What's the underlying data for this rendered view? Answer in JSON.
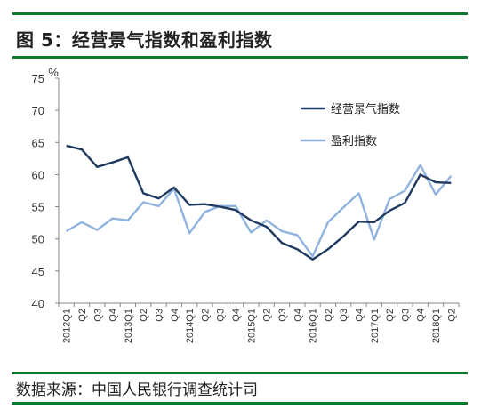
{
  "header": {
    "title": "图 5：经营景气指数和盈利指数"
  },
  "footer": {
    "source": "数据来源：中国人民银行调查统计司"
  },
  "colors": {
    "rule": "#0e7a2e",
    "series1": "#1f3a5f",
    "series2": "#8fb3de"
  },
  "chart_data": {
    "type": "line",
    "ylabel": "%",
    "ylim": [
      40,
      75
    ],
    "yticks": [
      40,
      45,
      50,
      55,
      60,
      65,
      70,
      75
    ],
    "legend_position": "top-right",
    "grid": false,
    "categories": [
      "2012Q1",
      "Q2",
      "Q3",
      "Q4",
      "2013Q1",
      "Q2",
      "Q3",
      "Q4",
      "2014Q1",
      "Q2",
      "Q3",
      "Q4",
      "2015Q1",
      "Q2",
      "Q3",
      "Q4",
      "2016Q1",
      "Q2",
      "Q3",
      "Q4",
      "2017Q1",
      "Q2",
      "Q3",
      "Q4",
      "2018Q1",
      "Q2"
    ],
    "series": [
      {
        "name": "经营景气指数",
        "values": [
          64.5,
          63.9,
          61.2,
          61.9,
          62.7,
          57.1,
          56.3,
          58.0,
          55.3,
          55.4,
          55.0,
          54.5,
          52.9,
          51.9,
          49.4,
          48.4,
          46.8,
          48.4,
          50.4,
          52.7,
          52.6,
          54.4,
          55.6,
          60.0,
          58.8,
          58.7
        ]
      },
      {
        "name": "盈利指数",
        "values": [
          51.2,
          52.6,
          51.4,
          53.2,
          52.9,
          55.7,
          55.1,
          57.8,
          50.9,
          54.2,
          55.1,
          55.1,
          51.0,
          52.9,
          51.2,
          50.6,
          47.3,
          52.6,
          54.9,
          57.1,
          49.9,
          56.2,
          57.5,
          61.5,
          56.9,
          59.8
        ]
      }
    ]
  }
}
